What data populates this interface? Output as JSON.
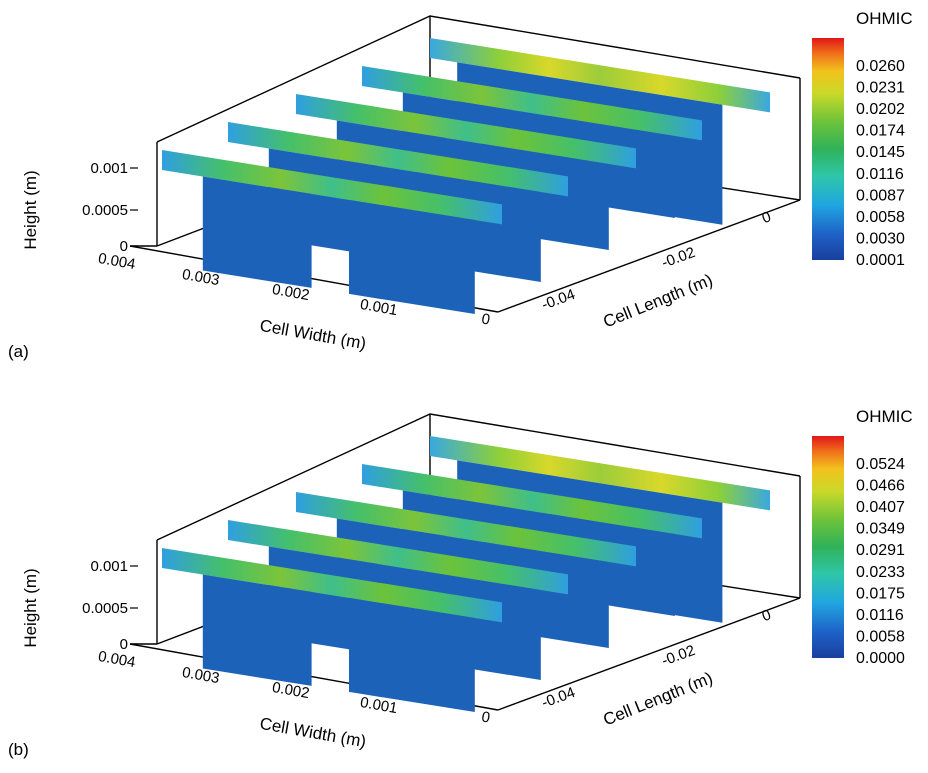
{
  "chart_data": [
    {
      "type": "heatmap",
      "panel_label": "(a)",
      "colorbar_title": "OHMIC",
      "colorbar_ticks": [
        "0.0260",
        "0.0231",
        "0.0202",
        "0.0174",
        "0.0145",
        "0.0116",
        "0.0087",
        "0.0058",
        "0.0030",
        "0.0001"
      ],
      "z_label": "Height (m)",
      "z_ticks": [
        "0.001",
        "0.0005",
        "0"
      ],
      "x_label": "Cell Width (m)",
      "x_ticks": [
        "0.004",
        "0.003",
        "0.002",
        "0.001",
        "0"
      ],
      "y_label": "Cell Length (m)",
      "y_ticks": [
        "-0.04",
        "-0.02",
        "0"
      ],
      "colors": {
        "low": "#1565c0",
        "mid": "#35c06a",
        "high": "#e0dc2a"
      }
    },
    {
      "type": "heatmap",
      "panel_label": "(b)",
      "colorbar_title": "OHMIC",
      "colorbar_ticks": [
        "0.0524",
        "0.0466",
        "0.0407",
        "0.0349",
        "0.0291",
        "0.0233",
        "0.0175",
        "0.0116",
        "0.0058",
        "0.0000"
      ],
      "z_label": "Height (m)",
      "z_ticks": [
        "0.001",
        "0.0005",
        "0"
      ],
      "x_label": "Cell Width (m)",
      "x_ticks": [
        "0.004",
        "0.003",
        "0.002",
        "0.001",
        "0"
      ],
      "y_label": "Cell Length (m)",
      "y_ticks": [
        "-0.04",
        "-0.02",
        "0"
      ],
      "colors": {
        "low": "#1565c0",
        "mid": "#35c06a",
        "high": "#e0dc2a"
      }
    }
  ]
}
